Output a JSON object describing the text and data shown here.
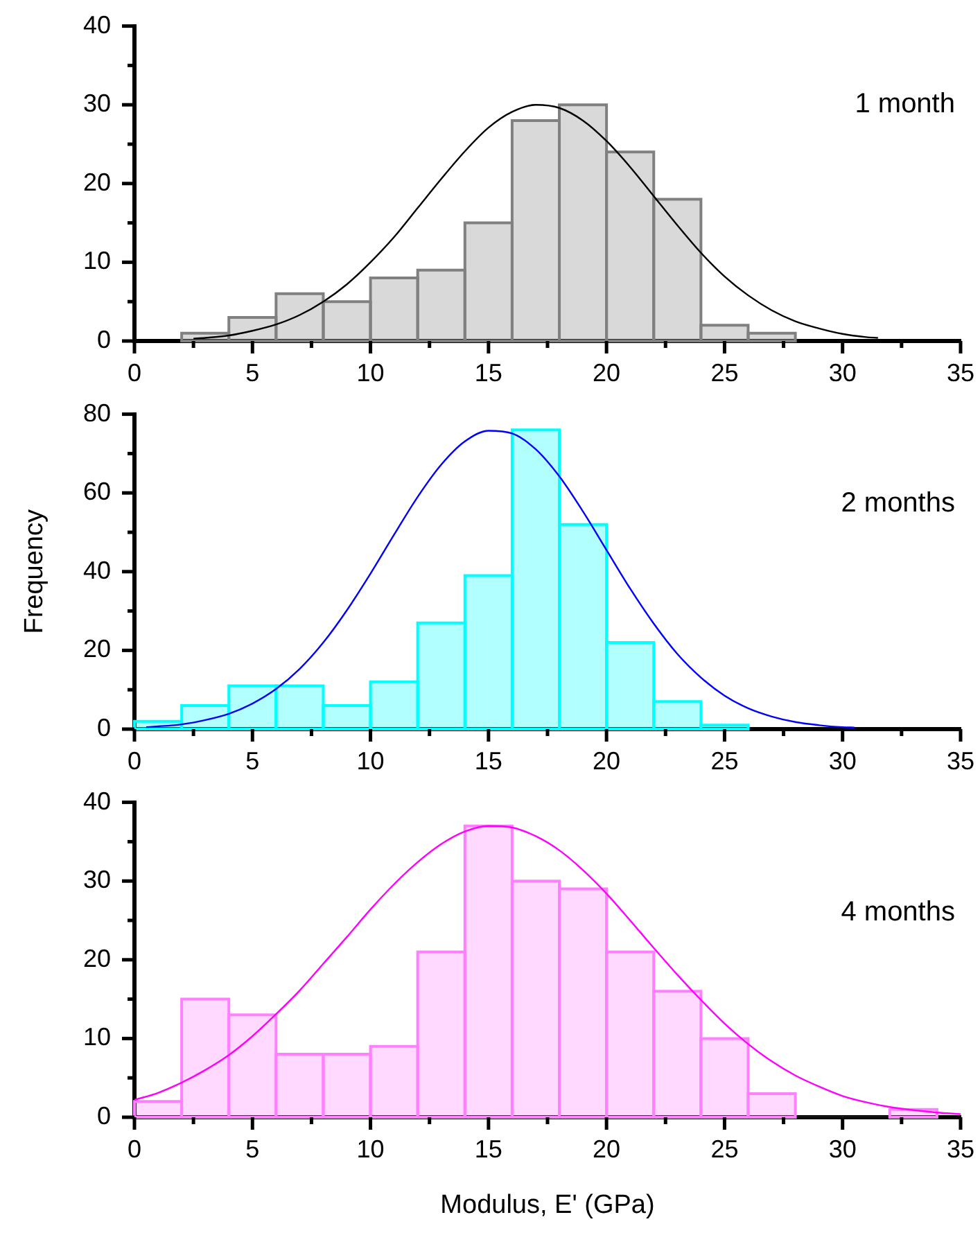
{
  "chart_data": [
    {
      "type": "histogram",
      "annotations": [
        "1 month"
      ],
      "xlim": [
        0,
        35
      ],
      "xticks": [
        0,
        {
          "value": 2.5,
          "label": null
        },
        5,
        {
          "value": 7.5,
          "label": null
        },
        10,
        {
          "value": 12.5,
          "label": null
        },
        15,
        {
          "value": 17.5,
          "label": null
        },
        20,
        {
          "value": 22.5,
          "label": null
        },
        25,
        {
          "value": 27.5,
          "label": null
        },
        30,
        {
          "value": 32.5,
          "label": null
        },
        35
      ],
      "ylim": [
        0,
        40
      ],
      "yticks": [
        0,
        {
          "value": 5,
          "label": null
        },
        10,
        {
          "value": 15,
          "label": null
        },
        20,
        {
          "value": 25,
          "label": null
        },
        30,
        {
          "value": 35,
          "label": null
        },
        40
      ],
      "series": [
        {
          "type": "histogram",
          "color": "#808080",
          "bins": [
            2,
            4,
            6,
            8,
            10,
            12,
            14,
            16,
            18,
            20,
            22,
            24,
            26,
            28
          ],
          "values": [
            1,
            3,
            6,
            5,
            8,
            9,
            15,
            28,
            30,
            24,
            18,
            2,
            1
          ]
        },
        {
          "type": "line",
          "color": "#000000",
          "x": [
            2.5,
            3,
            4,
            5,
            6,
            7,
            8,
            9,
            10,
            11,
            12,
            13,
            14,
            15,
            16,
            17,
            18,
            19,
            20,
            21,
            22,
            23,
            24,
            25,
            26,
            27,
            28,
            29,
            30,
            31,
            31.5
          ],
          "values": [
            0.3,
            0.4,
            0.7,
            1.3,
            2.1,
            3.3,
            5.0,
            7.2,
            10.0,
            13.2,
            16.9,
            20.6,
            24.1,
            27.1,
            29.1,
            30.0,
            29.6,
            28.0,
            25.4,
            22.1,
            18.4,
            14.7,
            11.2,
            8.2,
            5.8,
            3.9,
            2.5,
            1.6,
            0.9,
            0.5,
            0.4
          ]
        }
      ]
    },
    {
      "type": "histogram",
      "annotations": [
        "2 months"
      ],
      "ylabel": "Frequency",
      "xlim": [
        0,
        35
      ],
      "xticks": [
        0,
        {
          "value": 2.5,
          "label": null
        },
        5,
        {
          "value": 7.5,
          "label": null
        },
        10,
        {
          "value": 12.5,
          "label": null
        },
        15,
        {
          "value": 17.5,
          "label": null
        },
        20,
        {
          "value": 22.5,
          "label": null
        },
        25,
        {
          "value": 27.5,
          "label": null
        },
        30,
        {
          "value": 32.5,
          "label": null
        },
        35
      ],
      "ylim": [
        0,
        80
      ],
      "yticks": [
        0,
        {
          "value": 10,
          "label": null
        },
        20,
        {
          "value": 30,
          "label": null
        },
        40,
        {
          "value": 50,
          "label": null
        },
        60,
        {
          "value": 70,
          "label": null
        },
        80
      ],
      "series": [
        {
          "type": "histogram",
          "color": "#00ffff",
          "bins": [
            0,
            2,
            4,
            6,
            8,
            10,
            12,
            14,
            16,
            18,
            20,
            22,
            24,
            26
          ],
          "values": [
            2,
            6,
            11,
            11,
            6,
            12,
            27,
            39,
            76,
            52,
            22,
            7,
            1
          ]
        },
        {
          "type": "line",
          "color": "#0000ff",
          "x": [
            0.5,
            1,
            2,
            3,
            4,
            5,
            6,
            7,
            8,
            9,
            10,
            11,
            12,
            13,
            14,
            15,
            16,
            17,
            18,
            19,
            20,
            21,
            22,
            23,
            24,
            25,
            26,
            27,
            28,
            29,
            30,
            30.5
          ],
          "values": [
            0.5,
            0.7,
            1.2,
            2.3,
            3.9,
            6.5,
            10.2,
            15.3,
            22.0,
            30.2,
            39.5,
            49.4,
            59.0,
            67.2,
            73.1,
            75.8,
            75.1,
            71.1,
            64.2,
            55.3,
            45.5,
            35.7,
            26.8,
            19.1,
            13.1,
            8.5,
            5.3,
            3.2,
            1.8,
            1.0,
            0.5,
            0.4
          ]
        }
      ]
    },
    {
      "type": "histogram",
      "annotations": [
        "4 months"
      ],
      "xlabel": "Modulus, E' (GPa)",
      "xlim": [
        0,
        35
      ],
      "xticks": [
        0,
        {
          "value": 2.5,
          "label": null
        },
        5,
        {
          "value": 7.5,
          "label": null
        },
        10,
        {
          "value": 12.5,
          "label": null
        },
        15,
        {
          "value": 17.5,
          "label": null
        },
        20,
        {
          "value": 22.5,
          "label": null
        },
        25,
        {
          "value": 27.5,
          "label": null
        },
        30,
        {
          "value": 32.5,
          "label": null
        },
        35
      ],
      "ylim": [
        0,
        40
      ],
      "yticks": [
        0,
        {
          "value": 5,
          "label": null
        },
        10,
        {
          "value": 15,
          "label": null
        },
        20,
        {
          "value": 25,
          "label": null
        },
        30,
        {
          "value": 35,
          "label": null
        },
        40
      ],
      "series": [
        {
          "type": "histogram",
          "color": "#ff80ff",
          "bins": [
            0,
            2,
            4,
            6,
            8,
            10,
            12,
            14,
            16,
            18,
            20,
            22,
            24,
            26,
            28,
            30,
            32,
            34
          ],
          "values": [
            2,
            15,
            13,
            8,
            8,
            9,
            21,
            37,
            30,
            29,
            21,
            16,
            10,
            3,
            0,
            0,
            1
          ]
        },
        {
          "type": "line",
          "color": "#ff00ff",
          "x": [
            0,
            1,
            2,
            3,
            4,
            5,
            6,
            7,
            8,
            9,
            10,
            11,
            12,
            13,
            14,
            15,
            16,
            17,
            18,
            19,
            20,
            21,
            22,
            23,
            24,
            25,
            26,
            27,
            28,
            29,
            30,
            31,
            32,
            33,
            34,
            35
          ],
          "values": [
            2.2,
            3.1,
            4.4,
            6.0,
            7.9,
            10.3,
            13.1,
            16.1,
            19.5,
            22.9,
            26.4,
            29.6,
            32.4,
            34.7,
            36.3,
            37.0,
            36.8,
            35.7,
            33.9,
            31.4,
            28.4,
            25.0,
            21.5,
            18.1,
            14.9,
            11.9,
            9.3,
            7.1,
            5.3,
            3.9,
            2.7,
            1.9,
            1.3,
            0.9,
            0.6,
            0.4
          ]
        }
      ]
    }
  ]
}
